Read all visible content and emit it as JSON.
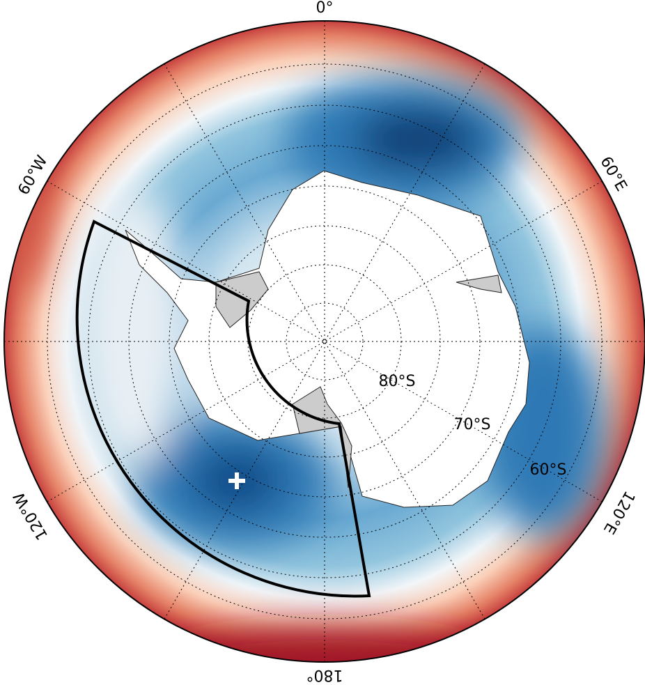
{
  "meridian_labels": [
    "0°",
    "60°E",
    "120°E",
    "180°",
    "120°W",
    "60°W"
  ],
  "parallel_labels": [
    "80°S",
    "70°S",
    "60°S"
  ]
}
